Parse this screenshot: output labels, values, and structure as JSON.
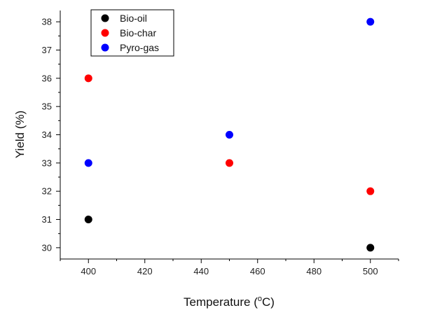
{
  "chart_data": {
    "type": "scatter",
    "title": "",
    "xlabel": "Temperature (",
    "xlabel_sup": "o",
    "xlabel_suffix": "C)",
    "ylabel": "Yield (%)",
    "xlim": [
      390,
      510
    ],
    "ylim": [
      29.6,
      38.4
    ],
    "xticks": [
      400,
      420,
      440,
      460,
      480,
      500
    ],
    "yticks": [
      30,
      31,
      32,
      33,
      34,
      35,
      36,
      37,
      38
    ],
    "grid": false,
    "legend_position": "top-left",
    "series": [
      {
        "name": "Bio-oil",
        "color": "#000000",
        "points": [
          {
            "x": 400,
            "y": 31
          },
          {
            "x": 500,
            "y": 30
          }
        ]
      },
      {
        "name": "Bio-char",
        "color": "#ff0000",
        "points": [
          {
            "x": 400,
            "y": 36
          },
          {
            "x": 450,
            "y": 33
          },
          {
            "x": 500,
            "y": 32
          }
        ]
      },
      {
        "name": "Pyro-gas",
        "color": "#0000ff",
        "points": [
          {
            "x": 400,
            "y": 33
          },
          {
            "x": 450,
            "y": 34
          },
          {
            "x": 500,
            "y": 38
          }
        ]
      }
    ]
  }
}
